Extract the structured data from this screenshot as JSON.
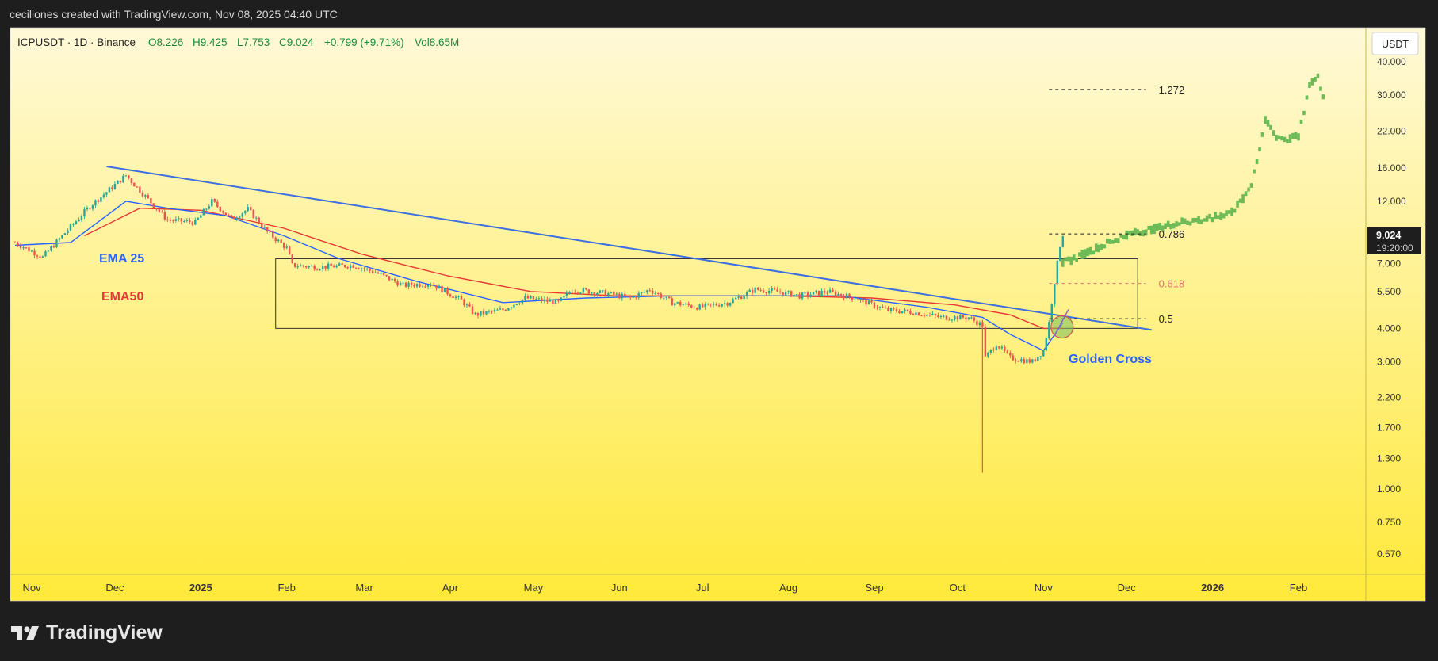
{
  "header": {
    "attribution": "ceciliones created with TradingView.com, Nov 08, 2025 04:40 UTC"
  },
  "brand": {
    "name": "TradingView"
  },
  "legend": {
    "symbol": "ICPUSDT · 1D · Binance",
    "open": "O8.226",
    "high": "H9.425",
    "low": "L7.753",
    "close": "C9.024",
    "change": "+0.799 (+9.71%)",
    "volume": "Vol8.65M"
  },
  "currency_button": "USDT",
  "last_price": {
    "value": "9.024",
    "countdown": "19:20:00",
    "price": 9.024
  },
  "annotations": {
    "ema25": "EMA 25",
    "ema50": "EMA50",
    "golden_cross": "Golden Cross"
  },
  "colors": {
    "bg_top": "#fff9d8",
    "bg_bottom": "#ffe93a",
    "ema25": "#2962ff",
    "ema50": "#e53935",
    "trendline": "#3d6fe0",
    "projection": "#6dbb57",
    "fib_red": "#e57373",
    "up_candle": "#26a69a",
    "down_candle": "#ef5350"
  },
  "chart_data": {
    "type": "candlestick",
    "title": "ICPUSDT · 1D · Binance",
    "y_scale": "log",
    "y_ticks": [
      "40.000",
      "30.000",
      "22.000",
      "16.000",
      "12.000",
      "7.000",
      "5.500",
      "4.000",
      "3.000",
      "2.200",
      "1.700",
      "1.300",
      "1.000",
      "0.750",
      "0.570"
    ],
    "y_tick_values": [
      40,
      30,
      22,
      16,
      12,
      7,
      5.5,
      4,
      3,
      2.2,
      1.7,
      1.3,
      1,
      0.75,
      0.57
    ],
    "x_ticks": [
      {
        "label": "Nov",
        "date": "2024-11-01",
        "bold": false
      },
      {
        "label": "Dec",
        "date": "2024-12-01",
        "bold": false
      },
      {
        "label": "2025",
        "date": "2025-01-01",
        "bold": true
      },
      {
        "label": "Feb",
        "date": "2025-02-01",
        "bold": false
      },
      {
        "label": "Mar",
        "date": "2025-03-01",
        "bold": false
      },
      {
        "label": "Apr",
        "date": "2025-04-01",
        "bold": false
      },
      {
        "label": "May",
        "date": "2025-05-01",
        "bold": false
      },
      {
        "label": "Jun",
        "date": "2025-06-01",
        "bold": false
      },
      {
        "label": "Jul",
        "date": "2025-07-01",
        "bold": false
      },
      {
        "label": "Aug",
        "date": "2025-08-01",
        "bold": false
      },
      {
        "label": "Sep",
        "date": "2025-09-01",
        "bold": false
      },
      {
        "label": "Oct",
        "date": "2025-10-01",
        "bold": false
      },
      {
        "label": "Nov",
        "date": "2025-11-01",
        "bold": false
      },
      {
        "label": "Dec",
        "date": "2025-12-01",
        "bold": false
      },
      {
        "label": "2026",
        "date": "2026-01-01",
        "bold": true
      },
      {
        "label": "Feb",
        "date": "2026-02-01",
        "bold": false
      }
    ],
    "price_path": [
      [
        "2024-10-26",
        8.4
      ],
      [
        "2024-11-05",
        7.4
      ],
      [
        "2024-11-12",
        8.9
      ],
      [
        "2024-11-22",
        11.5
      ],
      [
        "2024-12-05",
        15.0
      ],
      [
        "2024-12-12",
        12.5
      ],
      [
        "2024-12-20",
        10.2
      ],
      [
        "2024-12-30",
        10.0
      ],
      [
        "2025-01-05",
        12.0
      ],
      [
        "2025-01-12",
        10.3
      ],
      [
        "2025-01-18",
        11.2
      ],
      [
        "2025-01-25",
        9.2
      ],
      [
        "2025-02-01",
        8.0
      ],
      [
        "2025-02-03",
        6.9
      ],
      [
        "2025-02-12",
        6.8
      ],
      [
        "2025-02-25",
        6.9
      ],
      [
        "2025-03-05",
        6.5
      ],
      [
        "2025-03-15",
        5.8
      ],
      [
        "2025-03-25",
        5.9
      ],
      [
        "2025-04-05",
        5.1
      ],
      [
        "2025-04-10",
        4.5
      ],
      [
        "2025-04-20",
        4.7
      ],
      [
        "2025-04-28",
        5.2
      ],
      [
        "2025-05-10",
        5.0
      ],
      [
        "2025-05-15",
        5.6
      ],
      [
        "2025-05-28",
        5.4
      ],
      [
        "2025-06-05",
        5.2
      ],
      [
        "2025-06-12",
        5.6
      ],
      [
        "2025-06-20",
        5.0
      ],
      [
        "2025-06-30",
        4.8
      ],
      [
        "2025-07-10",
        5.0
      ],
      [
        "2025-07-20",
        5.6
      ],
      [
        "2025-07-28",
        5.5
      ],
      [
        "2025-08-05",
        5.3
      ],
      [
        "2025-08-15",
        5.5
      ],
      [
        "2025-08-25",
        5.2
      ],
      [
        "2025-09-05",
        4.7
      ],
      [
        "2025-09-15",
        4.6
      ],
      [
        "2025-09-25",
        4.4
      ],
      [
        "2025-10-05",
        4.4
      ],
      [
        "2025-10-10",
        4.1
      ],
      [
        "2025-10-11",
        3.1
      ],
      [
        "2025-10-15",
        3.5
      ],
      [
        "2025-10-20",
        3.1
      ],
      [
        "2025-10-28",
        3.0
      ],
      [
        "2025-11-01",
        3.3
      ],
      [
        "2025-11-03",
        4.2
      ],
      [
        "2025-11-05",
        6.0
      ],
      [
        "2025-11-07",
        8.2
      ],
      [
        "2025-11-08",
        9.024
      ]
    ],
    "wick_low": {
      "date": "2025-10-10",
      "value": 1.15
    },
    "ema25_path": [
      [
        "2024-10-26",
        8.2
      ],
      [
        "2024-11-15",
        8.4
      ],
      [
        "2024-12-05",
        12.0
      ],
      [
        "2024-12-20",
        11.3
      ],
      [
        "2025-01-10",
        10.6
      ],
      [
        "2025-01-31",
        8.9
      ],
      [
        "2025-02-20",
        7.3
      ],
      [
        "2025-03-20",
        6.0
      ],
      [
        "2025-04-20",
        5.0
      ],
      [
        "2025-05-20",
        5.2
      ],
      [
        "2025-06-20",
        5.3
      ],
      [
        "2025-07-20",
        5.3
      ],
      [
        "2025-08-20",
        5.3
      ],
      [
        "2025-09-20",
        4.8
      ],
      [
        "2025-10-10",
        4.4
      ],
      [
        "2025-10-20",
        3.8
      ],
      [
        "2025-11-01",
        3.3
      ],
      [
        "2025-11-08",
        4.2
      ]
    ],
    "ema50_path": [
      [
        "2024-11-20",
        8.9
      ],
      [
        "2024-12-10",
        11.3
      ],
      [
        "2025-01-01",
        11.1
      ],
      [
        "2025-01-31",
        9.5
      ],
      [
        "2025-02-28",
        7.6
      ],
      [
        "2025-03-31",
        6.3
      ],
      [
        "2025-04-30",
        5.5
      ],
      [
        "2025-05-31",
        5.3
      ],
      [
        "2025-06-30",
        5.3
      ],
      [
        "2025-07-31",
        5.3
      ],
      [
        "2025-08-31",
        5.2
      ],
      [
        "2025-09-30",
        4.9
      ],
      [
        "2025-10-20",
        4.5
      ],
      [
        "2025-11-01",
        4.0
      ],
      [
        "2025-11-08",
        4.0
      ]
    ],
    "trendline": {
      "start": [
        "2024-11-28",
        16.2
      ],
      "end": [
        "2025-12-10",
        3.95
      ]
    },
    "range_box": {
      "from": "2025-01-28",
      "to": "2025-12-05",
      "top": 7.3,
      "bottom": 4.0
    },
    "fib_levels": [
      {
        "label": "1.272",
        "value": 31.5,
        "color": "#222222"
      },
      {
        "label": "0.786",
        "value": 9.05,
        "color": "#222222"
      },
      {
        "label": "0.618",
        "value": 5.9,
        "color": "#e57373"
      },
      {
        "label": "0.5",
        "value": 4.35,
        "color": "#222222"
      }
    ],
    "fib_line_from": "2025-11-03",
    "fib_line_to": "2025-12-08",
    "projection_path": [
      [
        "2025-11-08",
        7.0
      ],
      [
        "2025-11-20",
        8.0
      ],
      [
        "2025-12-01",
        9.0
      ],
      [
        "2025-12-10",
        9.4
      ],
      [
        "2025-12-20",
        10.0
      ],
      [
        "2025-12-31",
        10.3
      ],
      [
        "2026-01-08",
        11.0
      ],
      [
        "2026-01-12",
        12.2
      ],
      [
        "2026-01-15",
        14.0
      ],
      [
        "2026-01-18",
        19.0
      ],
      [
        "2026-01-20",
        24.0
      ],
      [
        "2026-01-24",
        21.0
      ],
      [
        "2026-01-28",
        20.5
      ],
      [
        "2026-02-01",
        21.0
      ],
      [
        "2026-02-03",
        26.0
      ],
      [
        "2026-02-05",
        33.0
      ],
      [
        "2026-02-08",
        36.0
      ],
      [
        "2026-02-10",
        29.0
      ]
    ],
    "golden_cross": {
      "date": "2025-11-06",
      "value": 4.05
    }
  }
}
